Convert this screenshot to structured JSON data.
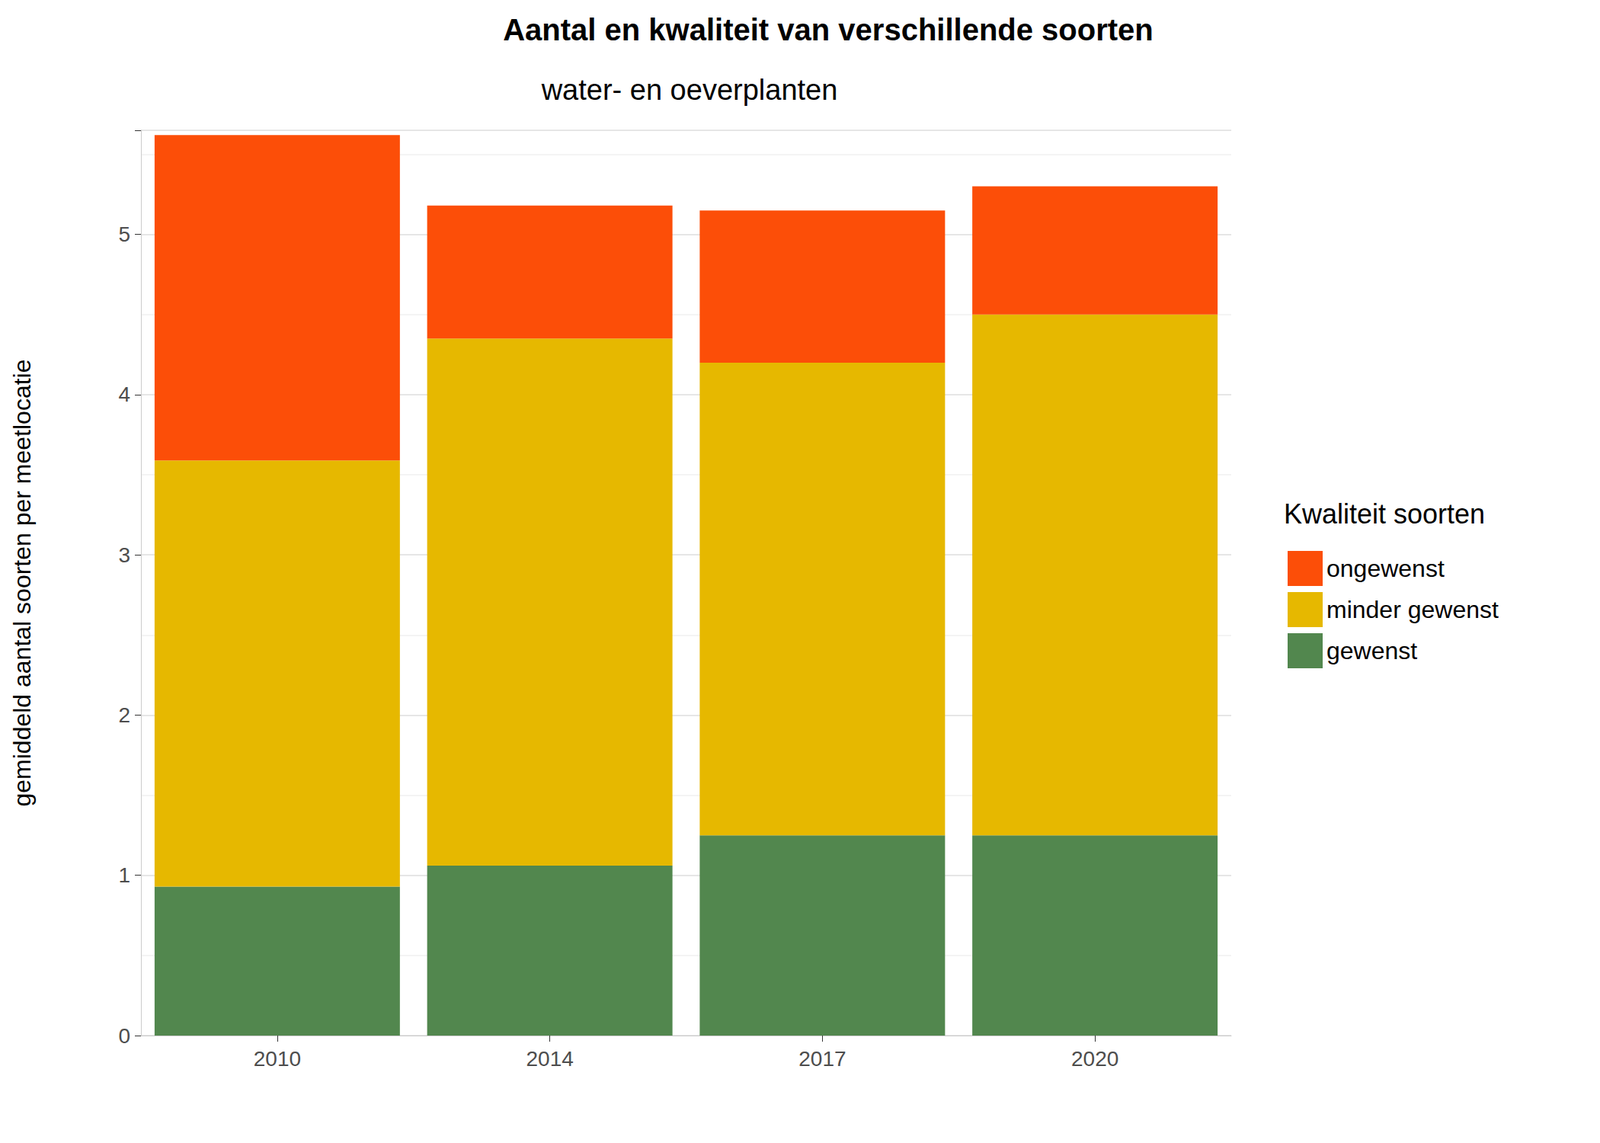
{
  "chart_data": {
    "type": "bar",
    "title": "Aantal en kwaliteit van verschillende soorten",
    "subtitle": "water- en oeverplanten",
    "y_label": "gemiddeld aantal soorten per meetlocatie",
    "legend_title": "Kwaliteit soorten",
    "categories": [
      "2010",
      "2014",
      "2017",
      "2020"
    ],
    "series": [
      {
        "name": "gewenst",
        "color": "#52874e",
        "values": [
          0.93,
          1.06,
          1.25,
          1.25
        ]
      },
      {
        "name": "minder gewenst",
        "color": "#e6b800",
        "values": [
          2.66,
          3.29,
          2.95,
          3.25
        ]
      },
      {
        "name": "ongewenst",
        "color": "#fc4e08",
        "values": [
          2.03,
          0.83,
          0.95,
          0.8
        ]
      }
    ],
    "stacked": true,
    "ylim": [
      0,
      5.65
    ],
    "yticks": [
      0,
      1,
      2,
      3,
      4,
      5
    ],
    "grid": true,
    "legend": "right"
  }
}
